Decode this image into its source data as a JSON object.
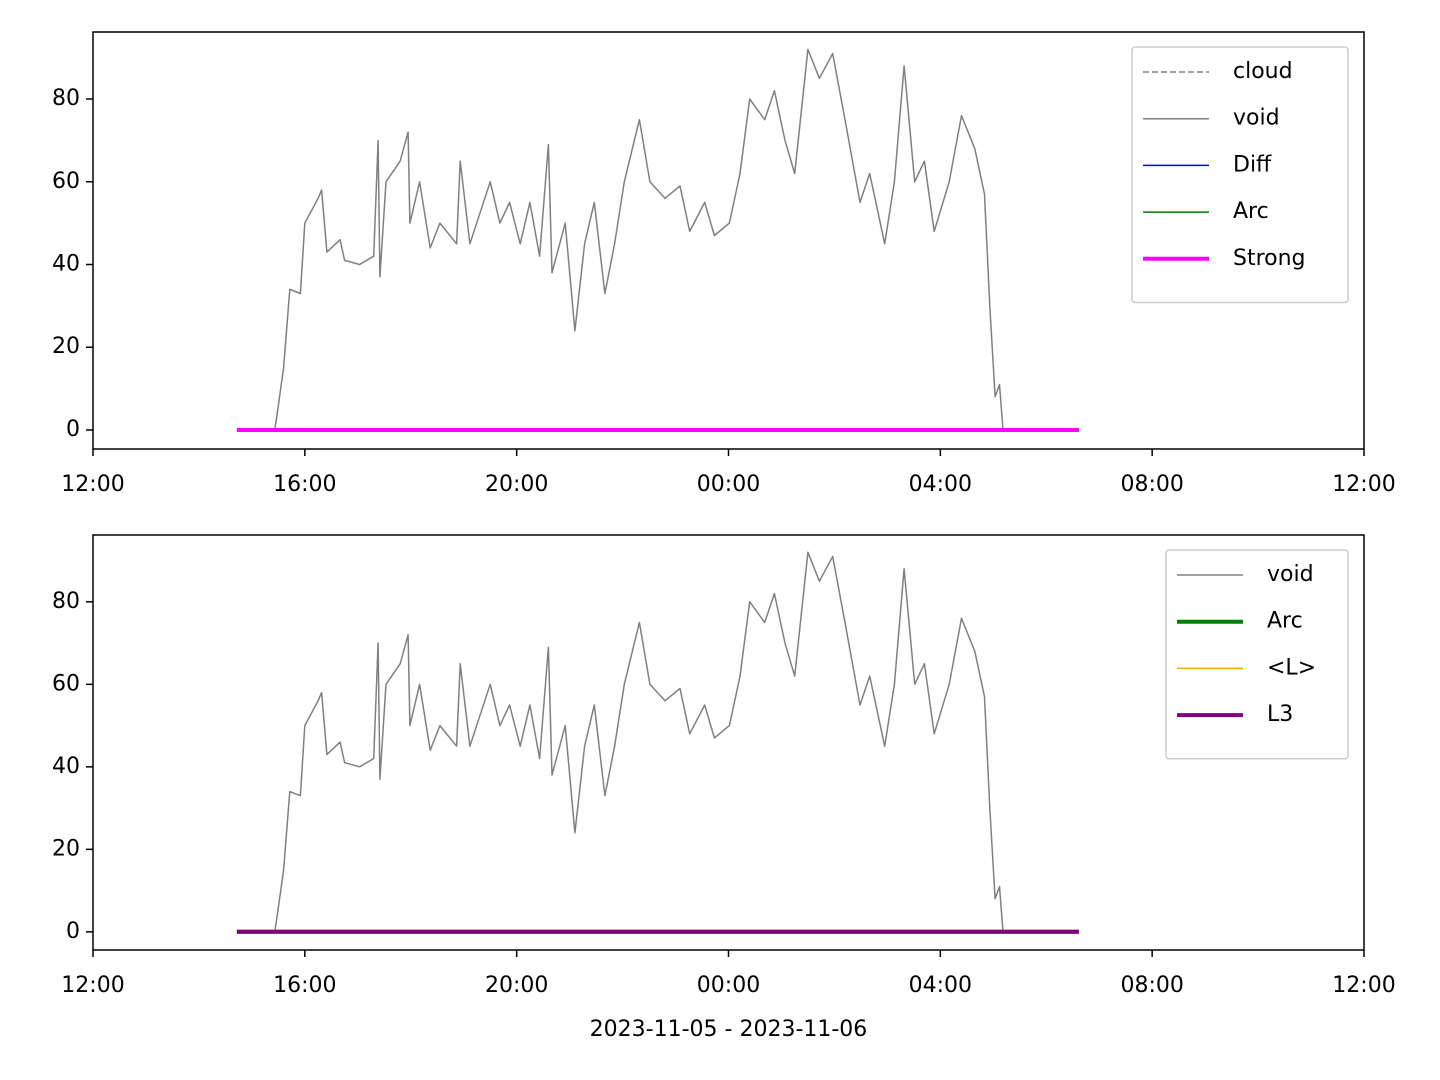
{
  "chart_data": [
    {
      "type": "line",
      "xlim": [
        "2023-11-05T12:00",
        "2023-11-06T12:00"
      ],
      "xticks": [
        {
          "value": "2023-11-05T12:00",
          "label": "12:00"
        },
        {
          "value": "2023-11-05T16:00",
          "label": "16:00"
        },
        {
          "value": "2023-11-05T20:00",
          "label": "20:00"
        },
        {
          "value": "2023-11-06T00:00",
          "label": "00:00"
        },
        {
          "value": "2023-11-06T04:00",
          "label": "04:00"
        },
        {
          "value": "2023-11-06T08:00",
          "label": "08:00"
        },
        {
          "value": "2023-11-06T12:00",
          "label": "12:00"
        }
      ],
      "ylim": [
        -4.6,
        96.2
      ],
      "yticks": [
        0,
        20,
        40,
        60,
        80
      ],
      "legend": "upper right",
      "series": [
        {
          "name": "cloud",
          "color": "#808080",
          "linestyle": "dashed",
          "linewidth": 1.5,
          "x": [
            "2023-11-05T14:43",
            "2023-11-06T06:37"
          ],
          "values": [
            0,
            0
          ]
        },
        {
          "name": "void",
          "color": "#808080",
          "linestyle": "solid",
          "linewidth": 1.5,
          "x": [
            "2023-11-05T15:26",
            "2023-11-05T15:30",
            "2023-11-05T15:36",
            "2023-11-05T15:43",
            "2023-11-05T15:55",
            "2023-11-05T16:00",
            "2023-11-05T16:15",
            "2023-11-05T16:19",
            "2023-11-05T16:25",
            "2023-11-05T16:40",
            "2023-11-05T16:45",
            "2023-11-05T17:02",
            "2023-11-05T17:18",
            "2023-11-05T17:23",
            "2023-11-05T17:25",
            "2023-11-05T17:32",
            "2023-11-05T17:48",
            "2023-11-05T17:57",
            "2023-11-05T17:59",
            "2023-11-05T18:10",
            "2023-11-05T18:22",
            "2023-11-05T18:33",
            "2023-11-05T18:52",
            "2023-11-05T18:56",
            "2023-11-05T19:07",
            "2023-11-05T19:30",
            "2023-11-05T19:41",
            "2023-11-05T19:52",
            "2023-11-05T20:04",
            "2023-11-05T20:15",
            "2023-11-05T20:26",
            "2023-11-05T20:36",
            "2023-11-05T20:40",
            "2023-11-05T20:55",
            "2023-11-05T21:06",
            "2023-11-05T21:17",
            "2023-11-05T21:28",
            "2023-11-05T21:40",
            "2023-11-05T21:51",
            "2023-11-05T22:02",
            "2023-11-05T22:19",
            "2023-11-05T22:31",
            "2023-11-05T22:48",
            "2023-11-05T23:05",
            "2023-11-05T23:16",
            "2023-11-05T23:33",
            "2023-11-05T23:44",
            "2023-11-06T00:01",
            "2023-11-06T00:13",
            "2023-11-06T00:24",
            "2023-11-06T00:41",
            "2023-11-06T00:52",
            "2023-11-06T01:04",
            "2023-11-06T01:15",
            "2023-11-06T01:30",
            "2023-11-06T01:43",
            "2023-11-06T01:58",
            "2023-11-06T02:12",
            "2023-11-06T02:29",
            "2023-11-06T02:40",
            "2023-11-06T02:57",
            "2023-11-06T03:08",
            "2023-11-06T03:19",
            "2023-11-06T03:31",
            "2023-11-06T03:42",
            "2023-11-06T03:53",
            "2023-11-06T04:10",
            "2023-11-06T04:24",
            "2023-11-06T04:39",
            "2023-11-06T04:50",
            "2023-11-06T04:56",
            "2023-11-06T05:02",
            "2023-11-06T05:07",
            "2023-11-06T05:11"
          ],
          "values": [
            0,
            6,
            15,
            34,
            33,
            50,
            56,
            58,
            43,
            46,
            41,
            40,
            42,
            70,
            37,
            60,
            65,
            72,
            50,
            60,
            44,
            50,
            45,
            65,
            45,
            60,
            50,
            55,
            45,
            55,
            42,
            69,
            38,
            50,
            24,
            45,
            55,
            33,
            45,
            60,
            75,
            60,
            56,
            59,
            48,
            55,
            47,
            50,
            62,
            80,
            75,
            82,
            70,
            62,
            92,
            85,
            91,
            75,
            55,
            62,
            45,
            60,
            88,
            60,
            65,
            48,
            60,
            76,
            68,
            57,
            30,
            8,
            11,
            0
          ]
        },
        {
          "name": "Diff",
          "color": "#0000ff",
          "linestyle": "solid",
          "linewidth": 1.5,
          "x": [
            "2023-11-05T14:43",
            "2023-11-06T06:37"
          ],
          "values": [
            0,
            0
          ]
        },
        {
          "name": "Arc",
          "color": "#008000",
          "linestyle": "solid",
          "linewidth": 1.5,
          "x": [
            "2023-11-05T14:43",
            "2023-11-06T06:37"
          ],
          "values": [
            0,
            0
          ]
        },
        {
          "name": "Strong",
          "color": "#ff00ff",
          "linestyle": "solid",
          "linewidth": 4,
          "x": [
            "2023-11-05T14:43",
            "2023-11-06T06:37"
          ],
          "values": [
            0,
            0
          ]
        }
      ]
    },
    {
      "type": "line",
      "xlabel": "2023-11-05 - 2023-11-06",
      "xlim": [
        "2023-11-05T12:00",
        "2023-11-06T12:00"
      ],
      "xticks": [
        {
          "value": "2023-11-05T12:00",
          "label": "12:00"
        },
        {
          "value": "2023-11-05T16:00",
          "label": "16:00"
        },
        {
          "value": "2023-11-05T20:00",
          "label": "20:00"
        },
        {
          "value": "2023-11-06T00:00",
          "label": "00:00"
        },
        {
          "value": "2023-11-06T04:00",
          "label": "04:00"
        },
        {
          "value": "2023-11-06T08:00",
          "label": "08:00"
        },
        {
          "value": "2023-11-06T12:00",
          "label": "12:00"
        }
      ],
      "ylim": [
        -4.4,
        96.2
      ],
      "yticks": [
        0,
        20,
        40,
        60,
        80
      ],
      "legend": "upper right",
      "series": [
        {
          "name": "void",
          "color": "#808080",
          "linestyle": "solid",
          "linewidth": 1.5,
          "x": [
            "2023-11-05T15:26",
            "2023-11-05T15:30",
            "2023-11-05T15:36",
            "2023-11-05T15:43",
            "2023-11-05T15:55",
            "2023-11-05T16:00",
            "2023-11-05T16:15",
            "2023-11-05T16:19",
            "2023-11-05T16:25",
            "2023-11-05T16:40",
            "2023-11-05T16:45",
            "2023-11-05T17:02",
            "2023-11-05T17:18",
            "2023-11-05T17:23",
            "2023-11-05T17:25",
            "2023-11-05T17:32",
            "2023-11-05T17:48",
            "2023-11-05T17:57",
            "2023-11-05T17:59",
            "2023-11-05T18:10",
            "2023-11-05T18:22",
            "2023-11-05T18:33",
            "2023-11-05T18:52",
            "2023-11-05T18:56",
            "2023-11-05T19:07",
            "2023-11-05T19:30",
            "2023-11-05T19:41",
            "2023-11-05T19:52",
            "2023-11-05T20:04",
            "2023-11-05T20:15",
            "2023-11-05T20:26",
            "2023-11-05T20:36",
            "2023-11-05T20:40",
            "2023-11-05T20:55",
            "2023-11-05T21:06",
            "2023-11-05T21:17",
            "2023-11-05T21:28",
            "2023-11-05T21:40",
            "2023-11-05T21:51",
            "2023-11-05T22:02",
            "2023-11-05T22:19",
            "2023-11-05T22:31",
            "2023-11-05T22:48",
            "2023-11-05T23:05",
            "2023-11-05T23:16",
            "2023-11-05T23:33",
            "2023-11-05T23:44",
            "2023-11-06T00:01",
            "2023-11-06T00:13",
            "2023-11-06T00:24",
            "2023-11-06T00:41",
            "2023-11-06T00:52",
            "2023-11-06T01:04",
            "2023-11-06T01:15",
            "2023-11-06T01:30",
            "2023-11-06T01:43",
            "2023-11-06T01:58",
            "2023-11-06T02:12",
            "2023-11-06T02:29",
            "2023-11-06T02:40",
            "2023-11-06T02:57",
            "2023-11-06T03:08",
            "2023-11-06T03:19",
            "2023-11-06T03:31",
            "2023-11-06T03:42",
            "2023-11-06T03:53",
            "2023-11-06T04:10",
            "2023-11-06T04:24",
            "2023-11-06T04:39",
            "2023-11-06T04:50",
            "2023-11-06T04:56",
            "2023-11-06T05:02",
            "2023-11-06T05:07",
            "2023-11-06T05:11"
          ],
          "values": [
            0,
            6,
            15,
            34,
            33,
            50,
            56,
            58,
            43,
            46,
            41,
            40,
            42,
            70,
            37,
            60,
            65,
            72,
            50,
            60,
            44,
            50,
            45,
            65,
            45,
            60,
            50,
            55,
            45,
            55,
            42,
            69,
            38,
            50,
            24,
            45,
            55,
            33,
            45,
            60,
            75,
            60,
            56,
            59,
            48,
            55,
            47,
            50,
            62,
            80,
            75,
            82,
            70,
            62,
            92,
            85,
            91,
            75,
            55,
            62,
            45,
            60,
            88,
            60,
            65,
            48,
            60,
            76,
            68,
            57,
            30,
            8,
            11,
            0
          ]
        },
        {
          "name": "Arc",
          "color": "#008000",
          "linestyle": "solid",
          "linewidth": 4,
          "x": [
            "2023-11-05T14:43",
            "2023-11-06T06:37"
          ],
          "values": [
            0,
            0
          ]
        },
        {
          "name": "<L>",
          "color": "#ffa500",
          "linestyle": "solid",
          "linewidth": 1.5,
          "x": [
            "2023-11-05T14:43",
            "2023-11-06T06:37"
          ],
          "values": [
            0,
            0
          ]
        },
        {
          "name": "L3",
          "color": "#800080",
          "linestyle": "solid",
          "linewidth": 4,
          "x": [
            "2023-11-05T14:43",
            "2023-11-06T06:37"
          ],
          "values": [
            0,
            0
          ]
        }
      ]
    }
  ]
}
